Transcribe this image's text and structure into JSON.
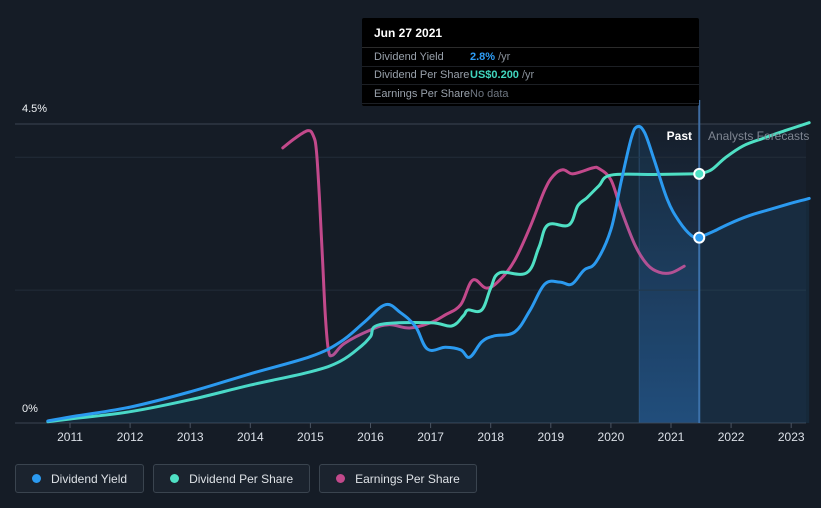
{
  "colors": {
    "background": "#151c26",
    "dividend_yield": "#2b9af0",
    "dividend_per_share": "#4fe0c4",
    "earnings_per_share": "#c2498b",
    "tooltip_yield_value": "#2f9df5",
    "tooltip_dps_value": "#41d6bf",
    "divider_line": "#3f6da3",
    "gridline_major": "#3b4552",
    "gridline_minor": "#232d39"
  },
  "tooltip": {
    "date": "Jun 27 2021",
    "rows": [
      {
        "label": "Dividend Yield",
        "value": "2.8%",
        "unit": "/yr"
      },
      {
        "label": "Dividend Per Share",
        "value": "US$0.200",
        "unit": "/yr"
      },
      {
        "label": "Earnings Per Share",
        "value": "No data",
        "unit": ""
      }
    ]
  },
  "chart": {
    "past_label": "Past",
    "forecast_label": "Analysts Forecasts",
    "y_max_label": "4.5%",
    "y_min_label": "0%"
  },
  "legend": {
    "items": [
      {
        "label": "Dividend Yield",
        "color_key": "dividend_yield"
      },
      {
        "label": "Dividend Per Share",
        "color_key": "dividend_per_share"
      },
      {
        "label": "Earnings Per Share",
        "color_key": "earnings_per_share"
      }
    ]
  },
  "chart_data": {
    "type": "line",
    "ylabel": "Dividend Yield",
    "ylim": [
      0,
      4.5
    ],
    "y_unit": "%",
    "x_ticks": [
      2011,
      2012,
      2013,
      2014,
      2015,
      2016,
      2017,
      2018,
      2019,
      2020,
      2021,
      2022,
      2023
    ],
    "gridlines_pct": [
      4.5,
      4.0,
      2.0,
      0
    ],
    "divider_x": 2021.47,
    "divider_date": "Jun 27 2021",
    "highlight_band_x": [
      2020.47,
      2021.47
    ],
    "legend_position": "bottom",
    "series": [
      {
        "name": "Dividend Yield",
        "color_key": "dividend_yield",
        "fill_under": true,
        "marker": [
          2021.47,
          2.79
        ],
        "marker_value": "2.8% /yr",
        "past": [
          [
            2010.63,
            0.03
          ],
          [
            2011,
            0.09
          ],
          [
            2012,
            0.24
          ],
          [
            2013,
            0.47
          ],
          [
            2014,
            0.74
          ],
          [
            2015,
            1.0
          ],
          [
            2015.5,
            1.22
          ],
          [
            2015.9,
            1.52
          ],
          [
            2016.25,
            1.78
          ],
          [
            2016.5,
            1.66
          ],
          [
            2016.75,
            1.45
          ],
          [
            2016.95,
            1.11
          ],
          [
            2017.25,
            1.14
          ],
          [
            2017.5,
            1.1
          ],
          [
            2017.65,
            0.99
          ],
          [
            2017.85,
            1.22
          ],
          [
            2018.05,
            1.31
          ],
          [
            2018.4,
            1.37
          ],
          [
            2018.65,
            1.69
          ],
          [
            2018.9,
            2.09
          ],
          [
            2019.15,
            2.12
          ],
          [
            2019.35,
            2.09
          ],
          [
            2019.55,
            2.3
          ],
          [
            2019.75,
            2.42
          ],
          [
            2020.0,
            2.91
          ],
          [
            2020.17,
            3.63
          ],
          [
            2020.34,
            4.29
          ],
          [
            2020.44,
            4.46
          ],
          [
            2020.56,
            4.37
          ],
          [
            2020.72,
            3.96
          ],
          [
            2020.94,
            3.36
          ],
          [
            2021.14,
            3.03
          ],
          [
            2021.34,
            2.82
          ],
          [
            2021.47,
            2.79
          ]
        ],
        "forecast": [
          [
            2021.47,
            2.79
          ],
          [
            2021.72,
            2.89
          ],
          [
            2021.97,
            3.0
          ],
          [
            2022.3,
            3.12
          ],
          [
            2022.63,
            3.21
          ],
          [
            2022.97,
            3.3
          ],
          [
            2023.3,
            3.38
          ]
        ]
      },
      {
        "name": "Dividend Per Share",
        "color_key": "dividend_per_share",
        "fill_under": false,
        "marker": [
          2021.47,
          3.75
        ],
        "marker_value": "US$0.200 /yr",
        "past": [
          [
            2010.63,
            0.02
          ],
          [
            2011,
            0.06
          ],
          [
            2012,
            0.17
          ],
          [
            2013,
            0.35
          ],
          [
            2014,
            0.57
          ],
          [
            2015,
            0.77
          ],
          [
            2015.5,
            0.93
          ],
          [
            2015.85,
            1.16
          ],
          [
            2016.0,
            1.3
          ],
          [
            2016.15,
            1.48
          ],
          [
            2017.0,
            1.51
          ],
          [
            2017.35,
            1.46
          ],
          [
            2017.55,
            1.62
          ],
          [
            2017.62,
            1.7
          ],
          [
            2017.85,
            1.7
          ],
          [
            2018.0,
            2.03
          ],
          [
            2018.15,
            2.26
          ],
          [
            2018.6,
            2.26
          ],
          [
            2018.8,
            2.64
          ],
          [
            2018.95,
            2.98
          ],
          [
            2019.3,
            2.98
          ],
          [
            2019.45,
            3.27
          ],
          [
            2019.6,
            3.39
          ],
          [
            2019.8,
            3.57
          ],
          [
            2020.0,
            3.73
          ],
          [
            2020.7,
            3.74
          ],
          [
            2021.47,
            3.75
          ]
        ],
        "forecast": [
          [
            2021.47,
            3.75
          ],
          [
            2021.67,
            3.81
          ],
          [
            2021.9,
            3.99
          ],
          [
            2022.2,
            4.17
          ],
          [
            2022.55,
            4.29
          ],
          [
            2022.9,
            4.4
          ],
          [
            2023.3,
            4.52
          ]
        ]
      },
      {
        "name": "Earnings Per Share",
        "color_key": "earnings_per_share",
        "fill_under": false,
        "marker": null,
        "marker_value": "No data",
        "past": [
          [
            2014.54,
            4.14
          ],
          [
            2014.75,
            4.29
          ],
          [
            2014.96,
            4.4
          ],
          [
            2015.05,
            4.32
          ],
          [
            2015.1,
            4.1
          ],
          [
            2015.15,
            3.4
          ],
          [
            2015.2,
            2.5
          ],
          [
            2015.25,
            1.6
          ],
          [
            2015.3,
            1.1
          ],
          [
            2015.37,
            1.02
          ],
          [
            2015.57,
            1.2
          ],
          [
            2016.0,
            1.4
          ],
          [
            2016.3,
            1.48
          ],
          [
            2016.65,
            1.43
          ],
          [
            2017.0,
            1.51
          ],
          [
            2017.25,
            1.63
          ],
          [
            2017.5,
            1.78
          ],
          [
            2017.7,
            2.15
          ],
          [
            2017.93,
            2.03
          ],
          [
            2018.15,
            2.15
          ],
          [
            2018.4,
            2.45
          ],
          [
            2018.65,
            2.94
          ],
          [
            2018.9,
            3.51
          ],
          [
            2019.05,
            3.73
          ],
          [
            2019.2,
            3.81
          ],
          [
            2019.35,
            3.75
          ],
          [
            2019.5,
            3.78
          ],
          [
            2019.7,
            3.84
          ],
          [
            2019.8,
            3.83
          ],
          [
            2020.0,
            3.66
          ],
          [
            2020.17,
            3.21
          ],
          [
            2020.4,
            2.68
          ],
          [
            2020.6,
            2.39
          ],
          [
            2020.8,
            2.27
          ],
          [
            2021.0,
            2.26
          ],
          [
            2021.22,
            2.36
          ]
        ],
        "forecast": []
      }
    ]
  }
}
